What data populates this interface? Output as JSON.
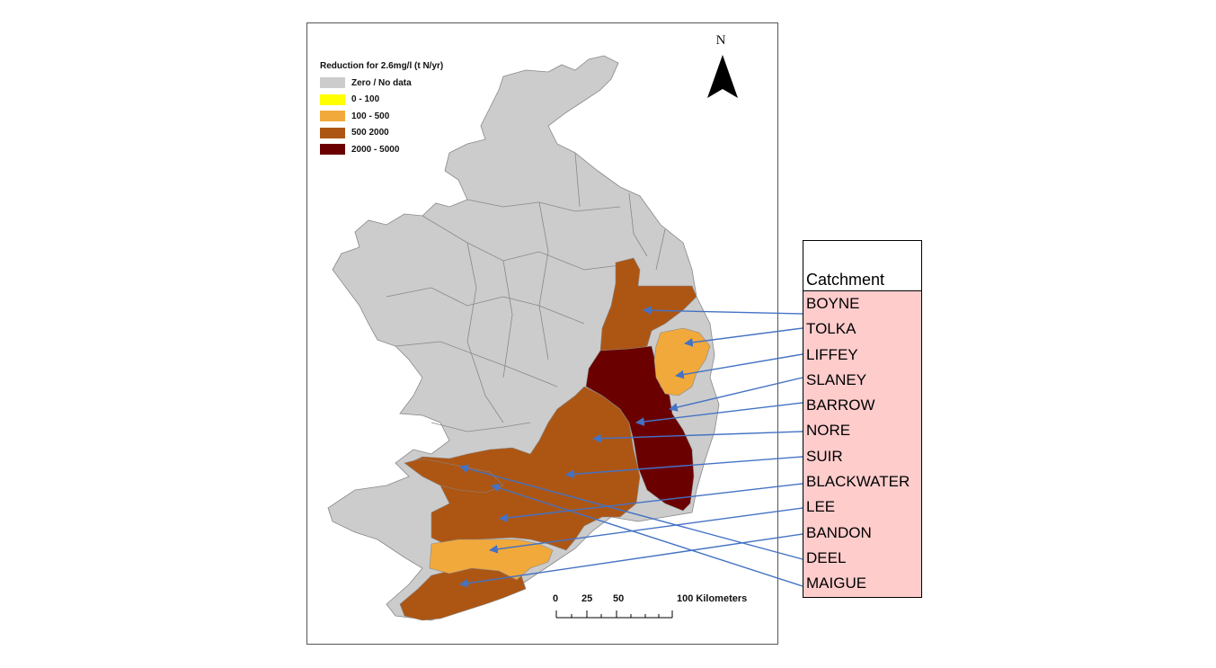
{
  "legend": {
    "title": "Reduction for 2.6mg/l (t N/yr)",
    "items": [
      {
        "label": "Zero / No data",
        "color": "#cccccc"
      },
      {
        "label": "0 - 100",
        "color": "#ffff00"
      },
      {
        "label": "100 - 500",
        "color": "#f2a93b"
      },
      {
        "label": "500 2000",
        "color": "#ad5614"
      },
      {
        "label": "2000 - 5000",
        "color": "#6b0000"
      }
    ]
  },
  "north_arrow": {
    "label": "N"
  },
  "scale_bar": {
    "ticks": [
      "0",
      "25",
      "50",
      "100 Kilometers"
    ]
  },
  "table": {
    "header": "Catchment",
    "rows": [
      "BOYNE",
      "TOLKA",
      "LIFFEY",
      "SLANEY",
      "BARROW",
      "NORE",
      "SUIR",
      "BLACKWATER",
      "LEE",
      "BANDON",
      "DEEL",
      "MAIGUE"
    ]
  },
  "colors": {
    "land": "#cccccc",
    "border": "#888888",
    "arrow": "#4472c4",
    "table_fill": "#ffcccc",
    "low_mid": "#f2a93b",
    "mid": "#ad5614",
    "high": "#6b0000"
  }
}
